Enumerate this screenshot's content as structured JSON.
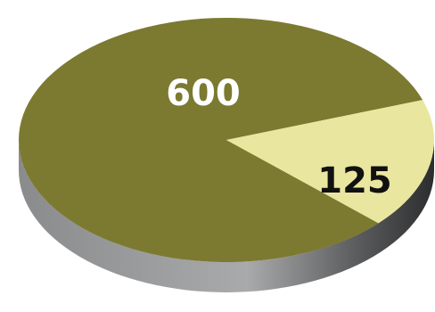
{
  "chart_data": {
    "type": "pie",
    "style": "3d",
    "slices": [
      {
        "label": "600",
        "value": 600,
        "color": "#7b7a30",
        "label_color": "#ffffff"
      },
      {
        "label": "125",
        "value": 125,
        "color": "#e9e6a0",
        "label_color": "#111111"
      }
    ],
    "side_color": "#8f9091",
    "legend": "none"
  }
}
